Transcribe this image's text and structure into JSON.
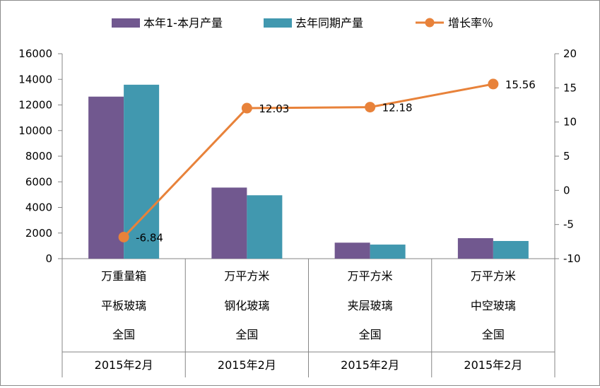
{
  "chart_data": {
    "type": "bar",
    "categories": [
      [
        "万重量箱",
        "平板玻璃",
        "全国",
        "2015年2月"
      ],
      [
        "万平方米",
        "钢化玻璃",
        "全国",
        "2015年2月"
      ],
      [
        "万平方米",
        "夹层玻璃",
        "全国",
        "2015年2月"
      ],
      [
        "万平方米",
        "中空玻璃",
        "全国",
        "2015年2月"
      ]
    ],
    "series": [
      {
        "name": "本年1-本月产量",
        "type": "bar",
        "axis": "left",
        "color": "#71588f",
        "values": [
          12650,
          5550,
          1250,
          1600
        ]
      },
      {
        "name": "去年同期产量",
        "type": "bar",
        "axis": "left",
        "color": "#4198af",
        "values": [
          13580,
          4950,
          1100,
          1380
        ]
      },
      {
        "name": "增长率％",
        "type": "line",
        "axis": "right",
        "color": "#e8823a",
        "values": [
          -6.84,
          12.03,
          12.18,
          15.56
        ],
        "labels": [
          "-6.84",
          "12.03",
          "12.18",
          "15.56"
        ]
      }
    ],
    "y_left": {
      "range": [
        0,
        16000
      ],
      "ticks": [
        "0",
        "2000",
        "4000",
        "6000",
        "8000",
        "10000",
        "12000",
        "14000",
        "16000"
      ]
    },
    "y_right": {
      "range": [
        -10,
        20
      ],
      "ticks": [
        "-10",
        "-5",
        "0",
        "5",
        "10",
        "15",
        "20"
      ]
    },
    "grid": false,
    "legend_position": "top"
  }
}
